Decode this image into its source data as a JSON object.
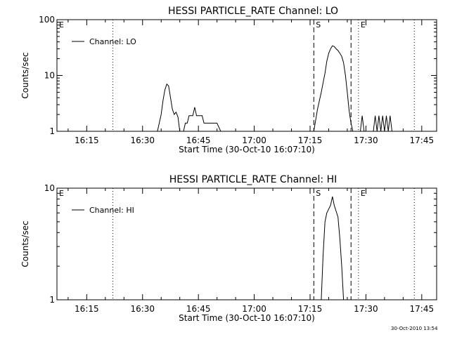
{
  "footer": {
    "timestamp": "30-Oct-2010 13:54"
  },
  "chart_data": [
    {
      "type": "line",
      "title": "HESSI PARTICLE_RATE Channel: LO",
      "xlabel": "Start Time (30-Oct-10 16:07:10)",
      "ylabel": "Counts/sec",
      "y_scale": "log",
      "ylim": [
        1,
        100
      ],
      "y_ticks": [
        1,
        10,
        100
      ],
      "y_tick_labels": [
        "1",
        "10",
        "100"
      ],
      "xlim": [
        "16:07",
        "17:49"
      ],
      "x_ticks": [
        "16:15",
        "16:30",
        "16:45",
        "17:00",
        "17:15",
        "17:30",
        "17:45"
      ],
      "legend": {
        "position": "top-left",
        "entries": [
          "Channel: LO"
        ]
      },
      "series": [
        {
          "name": "Channel: LO",
          "x": [
            "16:34",
            "16:35",
            "16:35:30",
            "16:36",
            "16:36:30",
            "16:37",
            "16:37:30",
            "16:38",
            "16:38:30",
            "16:39",
            "16:39:30",
            "16:40",
            "16:40:30",
            "16:41",
            "16:41:30",
            "16:42",
            "16:42:30",
            "16:43",
            "16:43:30",
            "16:44",
            "16:44:30",
            "16:45",
            "16:45:30",
            "16:46",
            "16:46:30",
            "16:47",
            "16:48",
            "16:49",
            "16:50",
            "16:51",
            "17:16",
            "17:17",
            "17:18",
            "17:19",
            "17:19:30",
            "17:20",
            "17:20:30",
            "17:21",
            "17:21:30",
            "17:22",
            "17:22:30",
            "17:23",
            "17:23:30",
            "17:24",
            "17:24:30",
            "17:25",
            "17:25:30",
            "17:26",
            "17:26:30",
            "17:28:30",
            "17:29",
            "17:29:30",
            "17:32",
            "17:32:30",
            "17:33",
            "17:33:30",
            "17:34",
            "17:34:30",
            "17:35",
            "17:35:30",
            "17:36",
            "17:36:30",
            "17:37"
          ],
          "y": [
            1,
            2,
            3.6,
            5.5,
            7,
            6.5,
            4,
            2.5,
            2,
            2.2,
            1.8,
            1,
            1,
            1,
            1.4,
            1.4,
            1.9,
            1.9,
            1.9,
            2.7,
            1.9,
            1.9,
            1.9,
            1.9,
            1.4,
            1.4,
            1.4,
            1.4,
            1.4,
            1,
            1,
            2.5,
            5,
            11,
            18,
            25,
            30,
            34,
            33,
            30,
            28,
            25,
            22,
            17,
            10,
            5,
            2.3,
            1.4,
            1,
            1,
            1.9,
            1,
            1,
            1.9,
            1,
            1.9,
            1,
            1.9,
            1,
            1.9,
            1,
            1.9,
            1
          ]
        }
      ],
      "markers": [
        {
          "label": "E",
          "x": "16:07",
          "style": "dotted"
        },
        {
          "label": "",
          "x": "16:22",
          "style": "dotted"
        },
        {
          "label": "S",
          "x": "17:16",
          "style": "dashed"
        },
        {
          "label": "",
          "x": "17:26",
          "style": "dashed"
        },
        {
          "label": "E",
          "x": "17:28",
          "style": "dotted"
        },
        {
          "label": "",
          "x": "17:43",
          "style": "dotted"
        }
      ]
    },
    {
      "type": "line",
      "title": "HESSI PARTICLE_RATE Channel: HI",
      "xlabel": "Start Time (30-Oct-10 16:07:10)",
      "ylabel": "Counts/sec",
      "y_scale": "log",
      "ylim": [
        1,
        10
      ],
      "y_ticks": [
        1,
        10
      ],
      "y_tick_labels": [
        "1",
        "10"
      ],
      "xlim": [
        "16:07",
        "17:49"
      ],
      "x_ticks": [
        "16:15",
        "16:30",
        "16:45",
        "17:00",
        "17:15",
        "17:30",
        "17:45"
      ],
      "legend": {
        "position": "top-left",
        "entries": [
          "Channel: HI"
        ]
      },
      "series": [
        {
          "name": "Channel: HI",
          "x": [
            "17:18",
            "17:18:30",
            "17:19",
            "17:19:30",
            "17:20",
            "17:20:30",
            "17:21",
            "17:21:30",
            "17:22",
            "17:22:30",
            "17:23",
            "17:23:30",
            "17:24"
          ],
          "y": [
            1,
            2.5,
            5,
            6,
            6.5,
            7,
            8.4,
            7,
            6.2,
            5.5,
            3.5,
            2,
            1
          ]
        }
      ],
      "markers": [
        {
          "label": "E",
          "x": "16:07",
          "style": "dotted"
        },
        {
          "label": "",
          "x": "16:22",
          "style": "dotted"
        },
        {
          "label": "S",
          "x": "17:16",
          "style": "dashed"
        },
        {
          "label": "",
          "x": "17:26",
          "style": "dashed"
        },
        {
          "label": "E",
          "x": "17:28",
          "style": "dotted"
        },
        {
          "label": "",
          "x": "17:43",
          "style": "dotted"
        }
      ]
    }
  ]
}
